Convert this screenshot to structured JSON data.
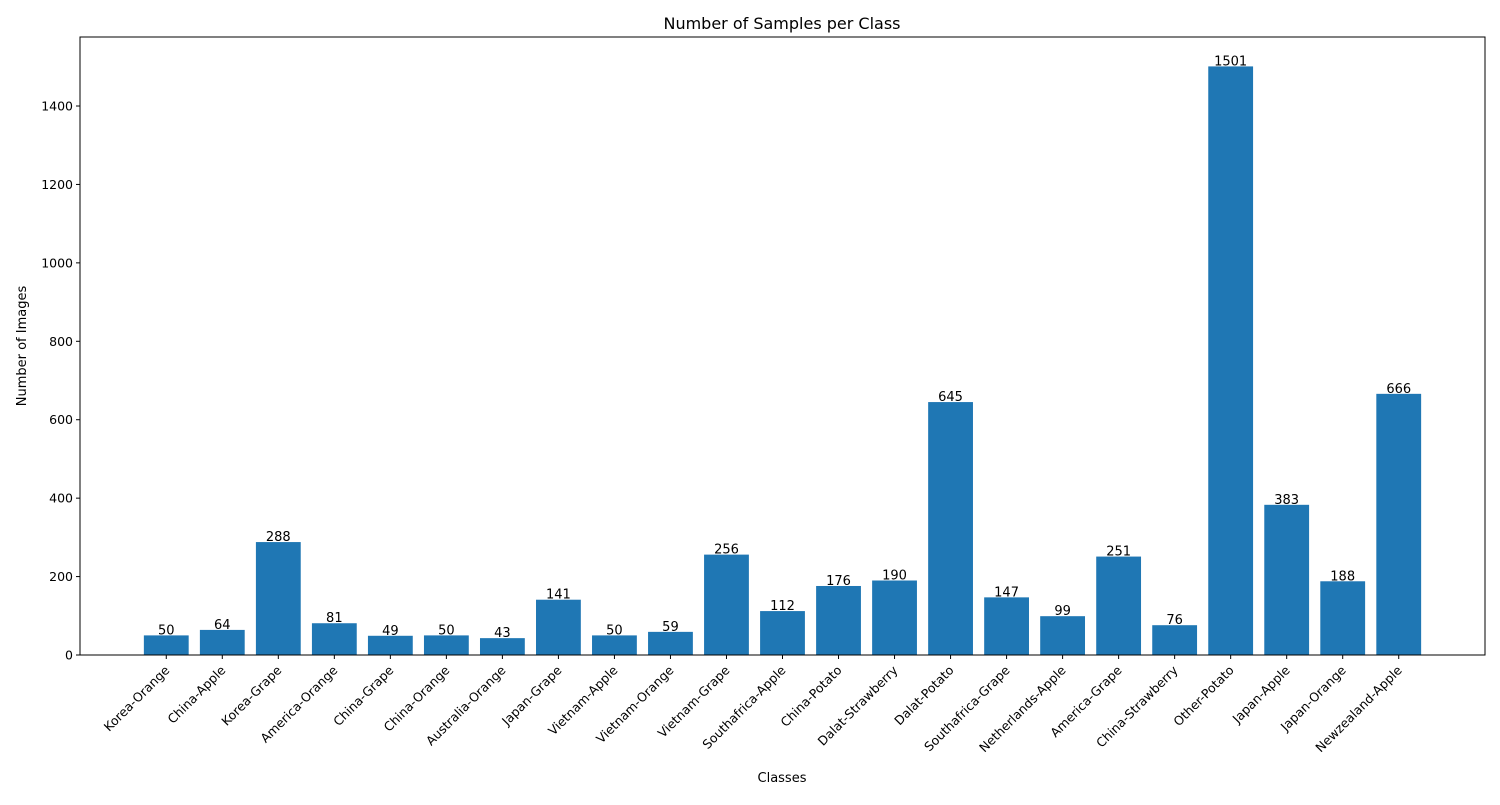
{
  "chart_data": {
    "type": "bar",
    "title": "Number of Samples per Class",
    "xlabel": "Classes",
    "ylabel": "Number of Images",
    "categories": [
      "Korea-Orange",
      "China-Apple",
      "Korea-Grape",
      "America-Orange",
      "China-Grape",
      "China-Orange",
      "Australia-Orange",
      "Japan-Grape",
      "Vietnam-Apple",
      "Vietnam-Orange",
      "Vietnam-Grape",
      "Southafrica-Apple",
      "China-Potato",
      "Dalat-Strawberry",
      "Dalat-Potato",
      "Southafrica-Grape",
      "Netherlands-Apple",
      "America-Grape",
      "China-Strawberry",
      "Other-Potato",
      "Japan-Apple",
      "Japan-Orange",
      "Newzealand-Apple"
    ],
    "values": [
      50,
      64,
      288,
      81,
      49,
      50,
      43,
      141,
      50,
      59,
      256,
      112,
      176,
      190,
      645,
      147,
      99,
      251,
      76,
      1501,
      383,
      188,
      666
    ],
    "ylim": [
      0,
      1576
    ],
    "yticks": [
      0,
      200,
      400,
      600,
      800,
      1000,
      1200,
      1400
    ],
    "bar_color": "#1f77b4",
    "grid": false,
    "legend": "none",
    "data_labels": true
  }
}
